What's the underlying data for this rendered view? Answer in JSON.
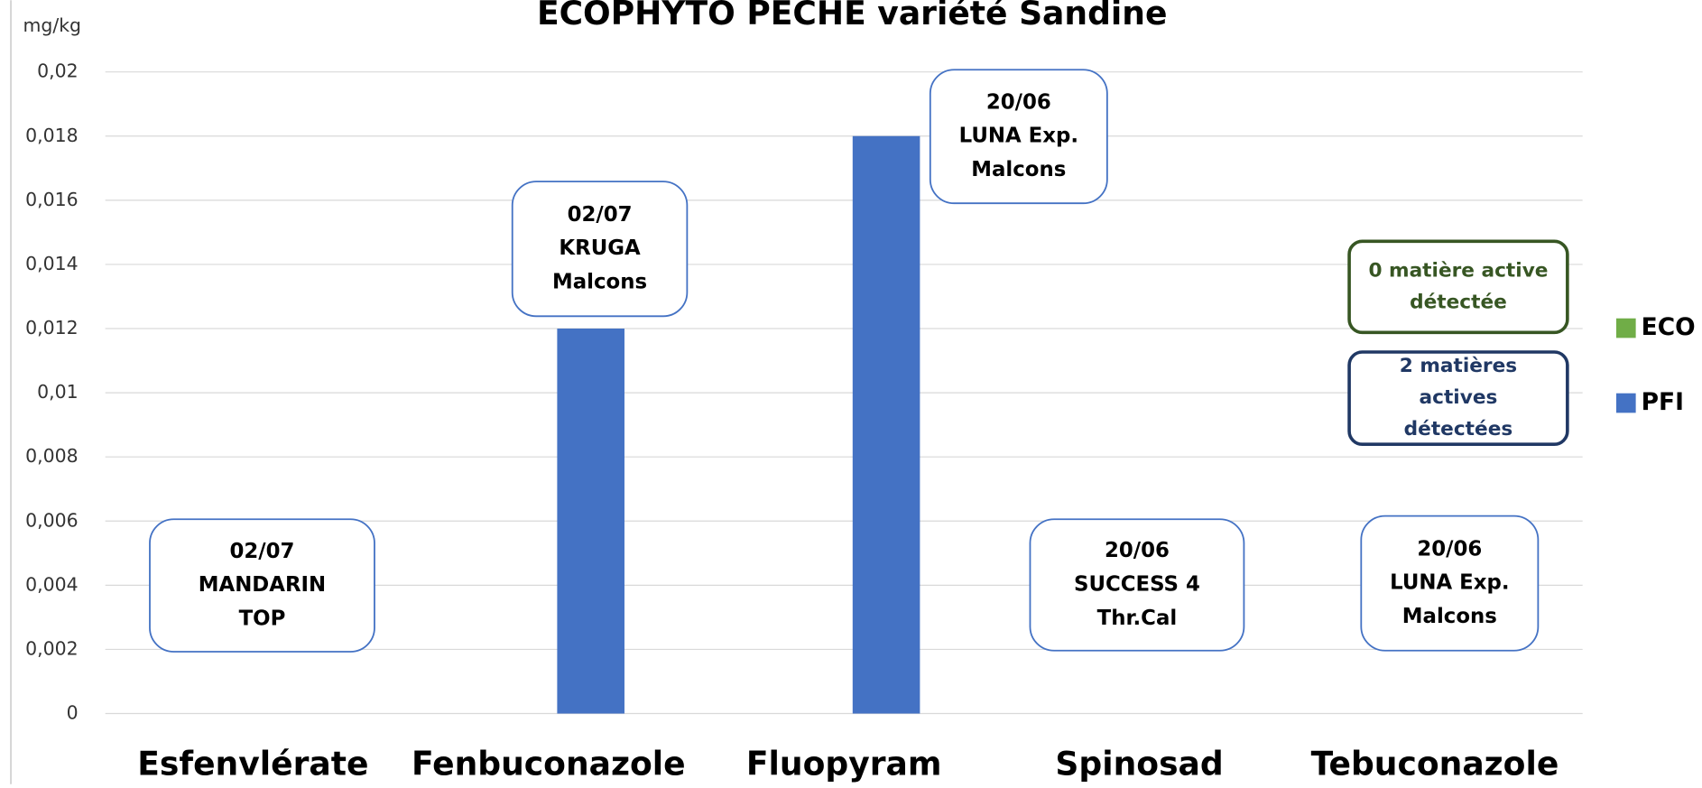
{
  "chart_data": {
    "type": "bar",
    "title": "ECOPHYTO PECHE variété Sandine",
    "y_label": "mg/kg",
    "categories": [
      "Esfenvlérate",
      "Fenbuconazole",
      "Fluopyram",
      "Spinosad",
      "Tebuconazole"
    ],
    "series": [
      {
        "name": "ECO",
        "color": "#70ad47",
        "values": [
          0,
          0,
          0,
          0,
          0
        ]
      },
      {
        "name": "PFI",
        "color": "#4472c4",
        "values": [
          0,
          0.012,
          0.018,
          0,
          0
        ]
      }
    ],
    "ylim": [
      0,
      0.02
    ],
    "yticks": [
      0,
      {
        "value": 0.002,
        "label": "0,002"
      },
      {
        "value": 0.004,
        "label": "0,004"
      },
      {
        "value": 0.006,
        "label": "0,006"
      },
      {
        "value": 0.008,
        "label": "0,008"
      },
      {
        "value": 0.01,
        "label": "0,01"
      },
      {
        "value": 0.012,
        "label": "0,012"
      },
      {
        "value": 0.014,
        "label": "0,014"
      },
      {
        "value": 0.016,
        "label": "0,016"
      },
      {
        "value": 0.018,
        "label": "0,018"
      },
      {
        "value": 0.02,
        "label": "0,02"
      }
    ],
    "grid": true,
    "legend": "right",
    "annotations": [
      {
        "lines": [
          "02/07",
          "MANDARIN",
          "TOP"
        ]
      },
      {
        "lines": [
          "02/07",
          "KRUGA",
          "Malcons"
        ]
      },
      {
        "lines": [
          "20/06",
          "LUNA Exp.",
          "Malcons"
        ]
      },
      {
        "lines": [
          "20/06",
          "SUCCESS 4",
          "Thr.Cal"
        ]
      },
      {
        "lines": [
          "20/06",
          "LUNA Exp.",
          "Malcons"
        ]
      }
    ],
    "notes": [
      {
        "lines": [
          "0 matière active",
          "détectée"
        ],
        "color": "#375623"
      },
      {
        "lines": [
          "2 matières",
          "actives",
          "détectées"
        ],
        "color": "#203864"
      }
    ]
  }
}
